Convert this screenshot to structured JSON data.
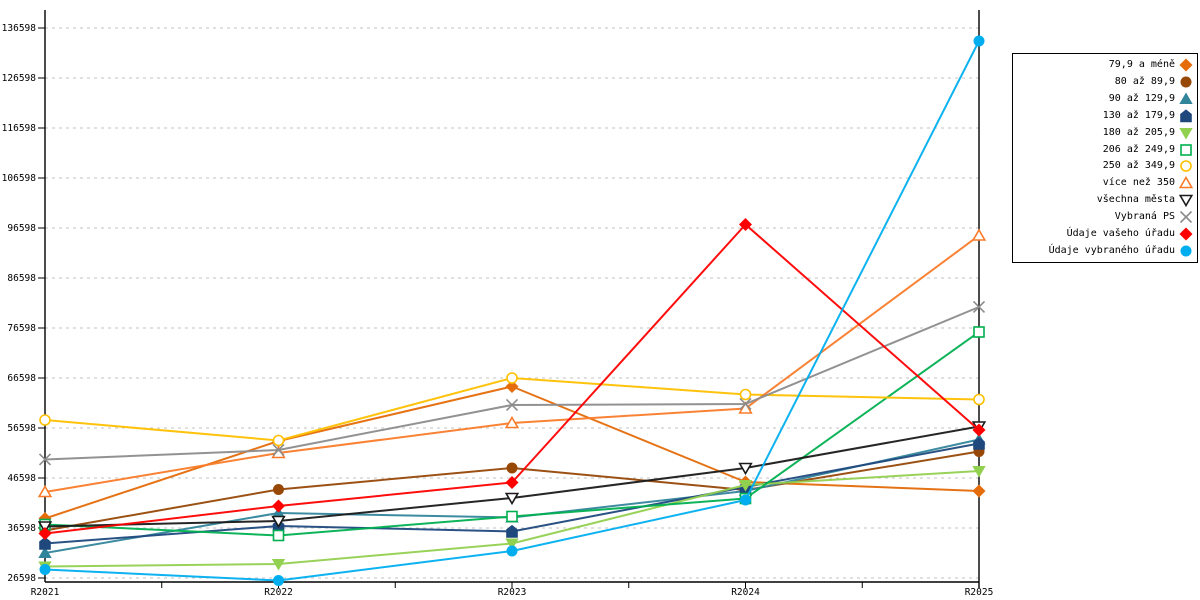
{
  "chart_data": {
    "type": "line",
    "categories": [
      "R2021",
      "R2022",
      "R2023",
      "R2024",
      "R2025"
    ],
    "y_ticks": [
      26598,
      36598,
      46598,
      56598,
      66598,
      76598,
      86598,
      96598,
      106598,
      116598,
      126598,
      136598
    ],
    "ylim": [
      26598,
      136598
    ],
    "grid": "horizontal-dashed",
    "legend_position": "top-right",
    "axis_color": "#000000",
    "grid_color": "#c3c3c3",
    "series": [
      {
        "name": "79,9 a méně",
        "color": "#e46c0a",
        "marker": "diamond",
        "filled": true,
        "values": [
          38500,
          54000,
          64900,
          45800,
          44000
        ]
      },
      {
        "name": "80 až 89,9",
        "color": "#974807",
        "marker": "circle",
        "filled": true,
        "values": [
          36100,
          44300,
          48600,
          44200,
          51900
        ]
      },
      {
        "name": "90 až 129,9",
        "color": "#31859b",
        "marker": "tri-up",
        "filled": true,
        "values": [
          31600,
          39600,
          38700,
          44000,
          54300
        ]
      },
      {
        "name": "130 až 179,9",
        "color": "#1f497d",
        "marker": "pentagon",
        "filled": true,
        "values": [
          33500,
          37000,
          35900,
          44800,
          53500
        ]
      },
      {
        "name": "180 až 205,9",
        "color": "#92d050",
        "marker": "tri-down",
        "filled": true,
        "values": [
          28900,
          29400,
          33500,
          45200,
          48000
        ]
      },
      {
        "name": "206 až 249,9",
        "color": "#00b050",
        "marker": "square",
        "filled": false,
        "values": [
          37300,
          35100,
          38900,
          42500,
          75800
        ]
      },
      {
        "name": "250 až 349,9",
        "color": "#ffc000",
        "marker": "circle",
        "filled": false,
        "values": [
          58200,
          54100,
          66600,
          63300,
          62300
        ]
      },
      {
        "name": "více než 350",
        "color": "#f97b29",
        "marker": "tri-up",
        "filled": false,
        "values": [
          43800,
          51600,
          57600,
          60500,
          95100
        ]
      },
      {
        "name": "všechna města",
        "color": "#1a1a1a",
        "marker": "tri-down",
        "filled": false,
        "values": [
          36900,
          38000,
          42600,
          48600,
          56900
        ]
      },
      {
        "name": "Vybraná PS",
        "color": "#8c8c8c",
        "marker": "xmark",
        "filled": false,
        "values": [
          50300,
          52200,
          61200,
          61400,
          80800
        ]
      },
      {
        "name": "Údaje vašeho úřadu",
        "color": "#fe0000",
        "marker": "diamond",
        "filled": true,
        "values": [
          35500,
          41000,
          45700,
          97300,
          56200
        ]
      },
      {
        "name": "Údaje vybraného úřadu",
        "color": "#00aeef",
        "marker": "circle",
        "filled": true,
        "values": [
          28300,
          26100,
          32000,
          42200,
          134000
        ]
      }
    ]
  }
}
